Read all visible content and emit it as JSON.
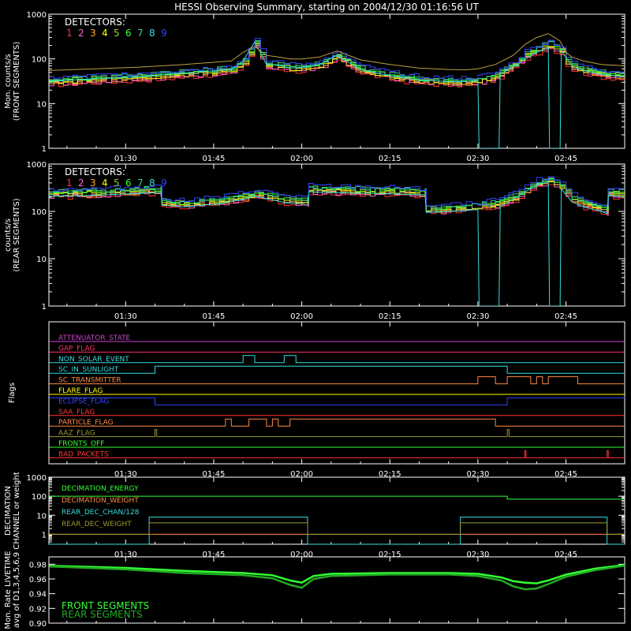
{
  "title": "HESSI Observing Summary, starting on 2004/12/30 01:16:56 UT",
  "colors": {
    "background": "#000000",
    "axis": "#ffffff",
    "det": [
      "#ff3333",
      "#ff66cc",
      "#ffaa33",
      "#ffff00",
      "#99cc33",
      "#33ff33",
      "#33cc99",
      "#33dddd",
      "#3344ff"
    ],
    "front_total": "#bba040",
    "rear_total": "#33dd33"
  },
  "chart_data": [
    {
      "id": "front",
      "type": "line",
      "ylabel1": "Mon. counts/s",
      "ylabel2": "(FRONT SEGMENTS)",
      "legend_title": "DETECTORS:",
      "legend_digits": [
        "1",
        "2",
        "3",
        "4",
        "5",
        "6",
        "7",
        "8",
        "9"
      ],
      "yscale": "log",
      "ylim": [
        1,
        1000
      ],
      "yticks": [
        "1",
        "10",
        "100",
        "1000"
      ],
      "xlim": [
        76.93,
        175
      ],
      "xticks": [
        "01:30",
        "01:45",
        "02:00",
        "02:15",
        "02:30",
        "02:45"
      ],
      "xtick_minutes": [
        90,
        105,
        120,
        135,
        150,
        165
      ],
      "series": [
        {
          "x": [
            77,
            85,
            92,
            100,
            108,
            110,
            112,
            114,
            116,
            118,
            120,
            123,
            126,
            130,
            135,
            140,
            145,
            148,
            150,
            153,
            156,
            158,
            160,
            162,
            164,
            165,
            166,
            168,
            171,
            175
          ],
          "y": [
            30,
            34,
            38,
            45,
            55,
            85,
            210,
            70,
            70,
            60,
            62,
            70,
            110,
            55,
            40,
            32,
            30,
            30,
            32,
            40,
            70,
            120,
            160,
            200,
            150,
            85,
            65,
            55,
            45,
            40
          ]
        },
        {
          "x": [
            77,
            85,
            92,
            100,
            108,
            110,
            112,
            114,
            116,
            118,
            120,
            123,
            126,
            130,
            135,
            140,
            145,
            148,
            150,
            153,
            156,
            158,
            160,
            162,
            164,
            165,
            166,
            168,
            171,
            175
          ],
          "y": [
            55,
            60,
            65,
            75,
            90,
            140,
            190,
            120,
            110,
            100,
            100,
            110,
            150,
            95,
            75,
            62,
            58,
            57,
            60,
            75,
            120,
            210,
            300,
            370,
            250,
            140,
            110,
            90,
            75,
            70
          ]
        },
        {
          "x": [
            77,
            85,
            92,
            100,
            108,
            110,
            112,
            114,
            116,
            118,
            120,
            123,
            126,
            130,
            135,
            140,
            145,
            148,
            150,
            150.2,
            153.6,
            153.8,
            160,
            162,
            162.2,
            164,
            164.2,
            166,
            168,
            171,
            175
          ],
          "y": [
            32,
            36,
            40,
            48,
            58,
            90,
            240,
            75,
            72,
            62,
            65,
            75,
            120,
            58,
            42,
            34,
            31,
            31,
            33,
            1,
            1,
            45,
            140,
            180,
            1,
            1,
            150,
            70,
            55,
            45,
            40
          ]
        }
      ]
    },
    {
      "id": "rear",
      "type": "line",
      "ylabel1": "counts/s",
      "ylabel2": "(REAR SEGMENTS)",
      "legend_title": "DETECTORS:",
      "legend_digits": [
        "1",
        "2",
        "3",
        "4",
        "5",
        "6",
        "7",
        "8",
        "9"
      ],
      "yscale": "log",
      "ylim": [
        1,
        1000
      ],
      "yticks": [
        "1",
        "10",
        "100",
        "1000"
      ],
      "xlim": [
        76.93,
        175
      ],
      "xticks": [
        "01:30",
        "01:45",
        "02:00",
        "02:15",
        "02:30",
        "02:45"
      ],
      "xtick_minutes": [
        90,
        105,
        120,
        135,
        150,
        165
      ],
      "series": [
        {
          "x": [
            77,
            85,
            94,
            96,
            96.2,
            100,
            106,
            110,
            112,
            115,
            117,
            119,
            120,
            121,
            121.2,
            125,
            135,
            141,
            141.2,
            148,
            150,
            153,
            156,
            158,
            160,
            162,
            164,
            166,
            168,
            171,
            172,
            172.2,
            175
          ],
          "y": [
            230,
            240,
            265,
            270,
            150,
            140,
            160,
            200,
            230,
            190,
            170,
            165,
            160,
            150,
            280,
            270,
            255,
            245,
            105,
            115,
            120,
            140,
            190,
            280,
            380,
            440,
            330,
            180,
            140,
            110,
            100,
            240,
            220
          ]
        },
        {
          "x": [
            77,
            85,
            94,
            96,
            96.2,
            100,
            106,
            110,
            112,
            115,
            117,
            119,
            120,
            121,
            121.2,
            125,
            135,
            141,
            141.2,
            148,
            150,
            150.2,
            153.6,
            153.8,
            160,
            162,
            162.2,
            164,
            164.2,
            166,
            168,
            171,
            172,
            172.2,
            175
          ],
          "y": [
            210,
            220,
            245,
            250,
            135,
            125,
            145,
            180,
            210,
            175,
            155,
            150,
            145,
            135,
            260,
            250,
            235,
            225,
            95,
            105,
            110,
            1,
            1,
            125,
            360,
            420,
            1,
            1,
            300,
            160,
            125,
            100,
            90,
            220,
            200
          ]
        }
      ]
    },
    {
      "id": "flags",
      "type": "line",
      "ylabel1": "Flags",
      "xlim": [
        76.93,
        175
      ],
      "xticks": [
        "01:30",
        "01:45",
        "02:00",
        "02:15",
        "02:30",
        "02:45"
      ],
      "xtick_minutes": [
        90,
        105,
        120,
        135,
        150,
        165
      ],
      "series": [
        {
          "name": "ATTENUATOR_STATE",
          "color": "#cc44cc",
          "x": [
            77,
            175
          ],
          "y": [
            0,
            0
          ]
        },
        {
          "name": "GAP_FLAG",
          "color": "#ff3366",
          "x": [
            77,
            175
          ],
          "y": [
            0,
            0
          ]
        },
        {
          "name": "NON_SOLAR_EVENT",
          "color": "#33dddd",
          "x": [
            77,
            110,
            110,
            112,
            112,
            117,
            117,
            119,
            119,
            175
          ],
          "y": [
            0,
            0,
            1,
            1,
            0,
            0,
            1,
            1,
            0,
            0
          ]
        },
        {
          "name": "SC_IN_SUNLIGHT",
          "color": "#33dddd",
          "x": [
            77,
            95,
            95,
            155,
            155,
            175
          ],
          "y": [
            0,
            0,
            1,
            1,
            0,
            0
          ]
        },
        {
          "name": "SC_TRANSMITTER",
          "color": "#ff8844",
          "x": [
            77,
            150,
            150,
            153,
            153,
            155,
            155,
            159,
            159,
            160,
            160,
            161,
            161,
            162,
            162,
            167,
            167,
            175
          ],
          "y": [
            0,
            0,
            1,
            1,
            0,
            0,
            1,
            1,
            0,
            0,
            1,
            1,
            0,
            0,
            1,
            1,
            0,
            0
          ]
        },
        {
          "name": "FLARE_FLAG",
          "color": "#ffff00",
          "x": [
            77,
            175
          ],
          "y": [
            0,
            0
          ]
        },
        {
          "name": "ECLIPSE_FLAG",
          "color": "#3344ff",
          "x": [
            77,
            95,
            95,
            155,
            155,
            175
          ],
          "y": [
            1,
            1,
            0,
            0,
            1,
            1
          ]
        },
        {
          "name": "SAA_FLAG",
          "color": "#ff3333",
          "x": [
            77,
            175
          ],
          "y": [
            0,
            0
          ]
        },
        {
          "name": "PARTICLE_FLAG",
          "color": "#ff8844",
          "x": [
            77,
            107,
            107,
            108,
            108,
            111,
            111,
            114,
            114,
            115,
            115,
            116,
            116,
            118,
            118,
            153,
            153,
            160,
            160,
            175
          ],
          "y": [
            0,
            0,
            1,
            1,
            0,
            0,
            1,
            1,
            0,
            0,
            1,
            1,
            0,
            0,
            1,
            1,
            0,
            0,
            0,
            0
          ]
        },
        {
          "name": "AAZ_FLAG",
          "color": "#999933",
          "x": [
            77,
            95,
            95,
            95.3,
            95.3,
            155,
            155,
            155.3,
            155.3,
            175
          ],
          "y": [
            0,
            0,
            1,
            1,
            0,
            0,
            1,
            1,
            0,
            0
          ]
        },
        {
          "name": "FRONTS_OFF",
          "color": "#33ff33",
          "x": [
            77,
            175
          ],
          "y": [
            0,
            0
          ]
        },
        {
          "name": "BAD_PACKETS",
          "color": "#ff3333",
          "x": [
            77,
            158,
            158,
            158.2,
            158.2,
            172,
            172,
            172.2,
            172.2,
            175
          ],
          "y": [
            0,
            0,
            1,
            1,
            0,
            0,
            1,
            1,
            0,
            0
          ]
        }
      ]
    },
    {
      "id": "decimation",
      "type": "line",
      "ylabel1": "DECIMATION",
      "ylabel2": "CHANNEL or weight",
      "yscale": "log",
      "ylim": [
        0.3,
        1000
      ],
      "yticks": [
        "1",
        "10",
        "100",
        "1000"
      ],
      "xlim": [
        76.93,
        175
      ],
      "xticks": [
        "01:30",
        "01:45",
        "02:00",
        "02:15",
        "02:30",
        "02:45"
      ],
      "xtick_minutes": [
        90,
        105,
        120,
        135,
        150,
        165
      ],
      "series": [
        {
          "name": "DECIMATION_ENERGY",
          "color": "#33ff33",
          "x": [
            77,
            155,
            155,
            175
          ],
          "y": [
            100,
            100,
            70,
            70
          ]
        },
        {
          "name": "DECIMATION_WEIGHT",
          "color": "#ff8844",
          "x": [
            77,
            175
          ],
          "y": [
            1,
            1
          ]
        },
        {
          "name": "REAR_DEC_CHAN/128",
          "color": "#33dddd",
          "x": [
            77,
            94,
            94,
            121,
            121,
            147,
            147,
            172,
            172,
            175
          ],
          "y": [
            0.3,
            0.3,
            8,
            8,
            0.3,
            0.3,
            8,
            8,
            0.3,
            0.3
          ]
        },
        {
          "name": "REAR_DEC_WEIGHT",
          "color": "#999933",
          "x": [
            77,
            94,
            94,
            121,
            121,
            147,
            147,
            172,
            172,
            175
          ],
          "y": [
            1,
            1,
            4,
            4,
            1,
            1,
            4,
            4,
            1,
            1
          ]
        }
      ]
    },
    {
      "id": "livetime",
      "type": "line",
      "ylabel1": "Mon. Rate LIVETIME",
      "ylabel2": "avg of D1,3,4,5,6,9",
      "ylim": [
        0.9,
        0.99
      ],
      "yticks": [
        "0.90",
        "0.92",
        "0.94",
        "0.96",
        "0.98"
      ],
      "xlim": [
        76.93,
        175
      ],
      "xticks": [
        "01:30",
        "01:45",
        "02:00",
        "02:15",
        "02:30",
        "02:45"
      ],
      "xtick_minutes": [
        90,
        105,
        120,
        135,
        150,
        165
      ],
      "series": [
        {
          "name": "FRONT SEGMENTS",
          "color": "#33ff33",
          "x": [
            77,
            90,
            100,
            110,
            115,
            118,
            120,
            122,
            125,
            135,
            145,
            150,
            154,
            156,
            158,
            160,
            162,
            165,
            170,
            175
          ],
          "y": [
            0.978,
            0.975,
            0.971,
            0.968,
            0.965,
            0.958,
            0.955,
            0.964,
            0.967,
            0.968,
            0.968,
            0.967,
            0.962,
            0.957,
            0.955,
            0.954,
            0.958,
            0.966,
            0.974,
            0.979
          ]
        },
        {
          "name": "REAR SEGMENTS",
          "color": "#22aa22",
          "x": [
            77,
            90,
            100,
            110,
            115,
            118,
            120,
            122,
            125,
            135,
            145,
            150,
            154,
            156,
            158,
            160,
            162,
            165,
            170,
            175
          ],
          "y": [
            0.977,
            0.973,
            0.968,
            0.965,
            0.961,
            0.952,
            0.948,
            0.96,
            0.964,
            0.966,
            0.966,
            0.964,
            0.958,
            0.95,
            0.946,
            0.947,
            0.953,
            0.963,
            0.972,
            0.978
          ]
        }
      ]
    }
  ]
}
